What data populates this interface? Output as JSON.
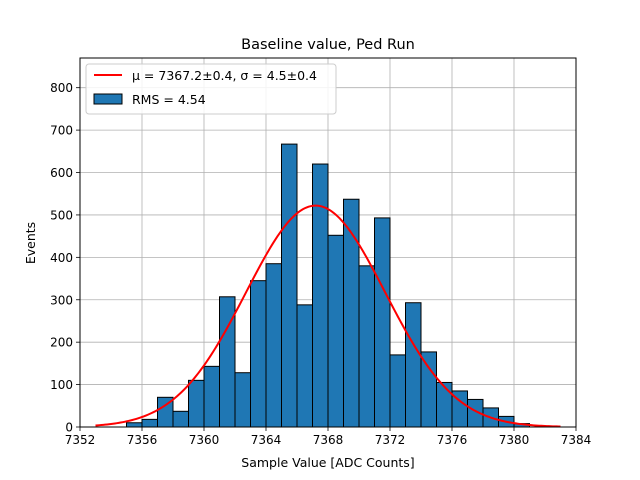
{
  "chart_data": {
    "type": "bar",
    "title": "Baseline value, Ped Run",
    "xlabel": "Sample Value [ADC Counts]",
    "ylabel": "Events",
    "xlim": [
      7352,
      7384
    ],
    "ylim": [
      0,
      870
    ],
    "x_ticks": [
      7352,
      7356,
      7360,
      7364,
      7368,
      7372,
      7376,
      7380,
      7384
    ],
    "y_ticks": [
      0,
      100,
      200,
      300,
      400,
      500,
      600,
      700,
      800
    ],
    "grid": true,
    "legend_position": "top-left",
    "histogram": {
      "name": "RMS = 4.54",
      "bin_width": 1,
      "bin_starts": [
        7355,
        7356,
        7357,
        7358,
        7359,
        7360,
        7361,
        7362,
        7363,
        7364,
        7365,
        7366,
        7367,
        7368,
        7369,
        7370,
        7371,
        7372,
        7373,
        7374,
        7375,
        7376,
        7377,
        7378,
        7379,
        7380
      ],
      "counts": [
        10,
        18,
        70,
        37,
        110,
        143,
        307,
        128,
        345,
        385,
        667,
        288,
        620,
        452,
        537,
        380,
        493,
        170,
        293,
        177,
        105,
        85,
        65,
        45,
        25,
        8
      ],
      "color": "#1f77b4",
      "edge_color": "#000000"
    },
    "fit": {
      "name": "μ = 7367.2±0.4, σ = 4.5±0.4",
      "mu": 7367.2,
      "sigma": 4.5,
      "amplitude": 522,
      "x_range": [
        7353,
        7383
      ],
      "color": "#ff0000"
    }
  }
}
